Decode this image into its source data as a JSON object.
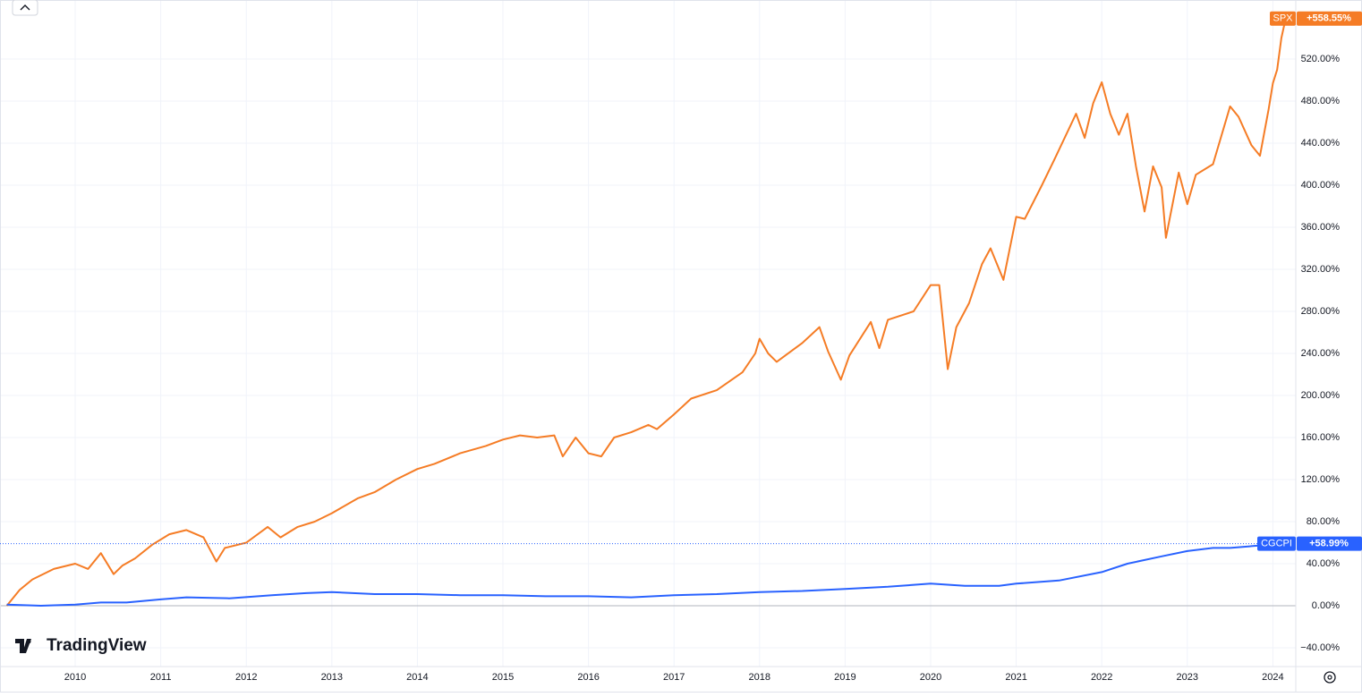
{
  "chart_data": {
    "type": "line",
    "brand": "TradingView",
    "xlim": [
      2009.121,
      2024.268
    ],
    "xticks": [
      2010,
      2011,
      2012,
      2013,
      2014,
      2015,
      2016,
      2017,
      2018,
      2019,
      2020,
      2021,
      2022,
      2023,
      2024
    ],
    "ylim": [
      -57.9,
      576.2
    ],
    "yticks": [
      {
        "value": -40,
        "label": "−40.00%"
      },
      {
        "value": 0,
        "label": "0.00%"
      },
      {
        "value": 40,
        "label": "40.00%"
      },
      {
        "value": 80,
        "label": "80.00%"
      },
      {
        "value": 120,
        "label": "120.00%"
      },
      {
        "value": 160,
        "label": "160.00%"
      },
      {
        "value": 200,
        "label": "200.00%"
      },
      {
        "value": 240,
        "label": "240.00%"
      },
      {
        "value": 280,
        "label": "280.00%"
      },
      {
        "value": 320,
        "label": "320.00%"
      },
      {
        "value": 360,
        "label": "360.00%"
      },
      {
        "value": 400,
        "label": "400.00%"
      },
      {
        "value": 440,
        "label": "440.00%"
      },
      {
        "value": 480,
        "label": "480.00%"
      },
      {
        "value": 520,
        "label": "520.00%"
      }
    ],
    "grid": true,
    "series": [
      {
        "name": "SPX",
        "color": "#f57c25",
        "end_label": "+558.55%",
        "x": [
          2009.2,
          2009.35,
          2009.5,
          2009.75,
          2010.0,
          2010.15,
          2010.3,
          2010.45,
          2010.55,
          2010.7,
          2010.9,
          2011.1,
          2011.3,
          2011.5,
          2011.65,
          2011.75,
          2012.0,
          2012.25,
          2012.4,
          2012.6,
          2012.8,
          2013.0,
          2013.3,
          2013.5,
          2013.75,
          2014.0,
          2014.2,
          2014.5,
          2014.8,
          2015.0,
          2015.2,
          2015.4,
          2015.6,
          2015.7,
          2015.85,
          2016.0,
          2016.15,
          2016.3,
          2016.5,
          2016.7,
          2016.8,
          2017.0,
          2017.2,
          2017.5,
          2017.8,
          2017.95,
          2018.0,
          2018.1,
          2018.2,
          2018.5,
          2018.7,
          2018.8,
          2018.95,
          2019.05,
          2019.3,
          2019.4,
          2019.5,
          2019.8,
          2020.0,
          2020.1,
          2020.2,
          2020.3,
          2020.45,
          2020.6,
          2020.7,
          2020.85,
          2021.0,
          2021.1,
          2021.3,
          2021.45,
          2021.7,
          2021.8,
          2021.9,
          2022.0,
          2022.1,
          2022.2,
          2022.3,
          2022.4,
          2022.5,
          2022.6,
          2022.7,
          2022.75,
          2022.9,
          2023.0,
          2023.1,
          2023.3,
          2023.5,
          2023.6,
          2023.75,
          2023.85,
          2023.95,
          2024.0,
          2024.05,
          2024.1,
          2024.15
        ],
        "values": [
          0,
          15,
          25,
          35,
          40,
          35,
          50,
          30,
          38,
          45,
          58,
          68,
          72,
          65,
          42,
          55,
          60,
          75,
          65,
          75,
          80,
          88,
          102,
          108,
          120,
          130,
          135,
          145,
          152,
          158,
          162,
          160,
          162,
          142,
          160,
          145,
          142,
          160,
          165,
          172,
          168,
          182,
          197,
          205,
          222,
          240,
          254,
          240,
          232,
          250,
          265,
          242,
          215,
          238,
          270,
          245,
          272,
          280,
          305,
          305,
          225,
          265,
          288,
          325,
          340,
          310,
          370,
          368,
          400,
          425,
          468,
          445,
          478,
          498,
          468,
          448,
          468,
          418,
          375,
          418,
          398,
          350,
          412,
          382,
          410,
          420,
          475,
          465,
          438,
          428,
          472,
          497,
          510,
          540,
          558.55
        ]
      },
      {
        "name": "CGCPI",
        "color": "#2962ff",
        "end_label": "+58.99%",
        "x": [
          2009.2,
          2009.6,
          2010.0,
          2010.3,
          2010.6,
          2011.0,
          2011.3,
          2011.8,
          2012.3,
          2012.7,
          2013.0,
          2013.5,
          2014.0,
          2014.5,
          2015.0,
          2015.5,
          2016.0,
          2016.5,
          2017.0,
          2017.5,
          2018.0,
          2018.5,
          2019.0,
          2019.5,
          2020.0,
          2020.4,
          2020.8,
          2021.0,
          2021.5,
          2022.0,
          2022.3,
          2022.7,
          2023.0,
          2023.3,
          2023.5,
          2023.8,
          2024.15
        ],
        "values": [
          1,
          0,
          1,
          3,
          3,
          6,
          8,
          7,
          10,
          12,
          13,
          11,
          11,
          10,
          10,
          9,
          9,
          8,
          10,
          11,
          13,
          14,
          16,
          18,
          21,
          19,
          19,
          21,
          24,
          32,
          40,
          47,
          52,
          55,
          55,
          57,
          58.99
        ]
      }
    ]
  }
}
